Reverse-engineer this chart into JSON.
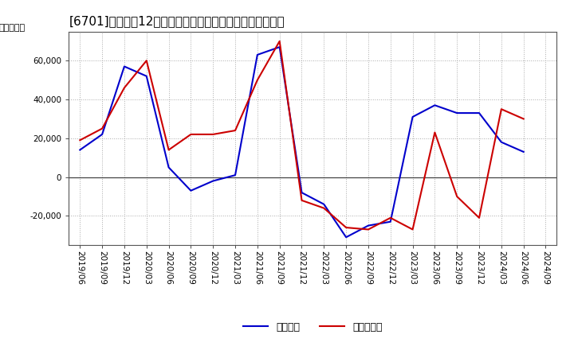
{
  "title": "[6701]　利益の12か月移動合計の対前年同期増減額の推移",
  "ylabel": "（百万円）",
  "legend_keijo": "経常利益",
  "legend_jun": "当期純利益",
  "background_color": "#ffffff",
  "plot_bg_color": "#ffffff",
  "grid_color": "#aaaaaa",
  "x_labels": [
    "2019/06",
    "2019/09",
    "2019/12",
    "2020/03",
    "2020/06",
    "2020/09",
    "2020/12",
    "2021/03",
    "2021/06",
    "2021/09",
    "2021/12",
    "2022/03",
    "2022/06",
    "2022/09",
    "2022/12",
    "2023/03",
    "2023/06",
    "2023/09",
    "2023/12",
    "2024/03",
    "2024/06",
    "2024/09"
  ],
  "keijo_rieki": [
    14000,
    22000,
    57000,
    52000,
    5000,
    -7000,
    -2000,
    1000,
    63000,
    67000,
    -8000,
    -14000,
    -31000,
    -25000,
    -23000,
    31000,
    37000,
    33000,
    33000,
    18000,
    13000,
    null
  ],
  "junrieki": [
    19000,
    25000,
    46000,
    60000,
    14000,
    22000,
    22000,
    24000,
    50000,
    70000,
    -12000,
    -16000,
    -26000,
    -27000,
    -21000,
    -27000,
    23000,
    -10000,
    -21000,
    35000,
    30000,
    null
  ],
  "keijo_color": "#0000cc",
  "junrieki_color": "#cc0000",
  "ylim": [
    -35000,
    75000
  ],
  "yticks": [
    -20000,
    0,
    20000,
    40000,
    60000
  ],
  "line_width": 1.5,
  "title_fontsize": 11,
  "tick_fontsize": 7.5,
  "legend_fontsize": 9,
  "ylabel_fontsize": 8
}
